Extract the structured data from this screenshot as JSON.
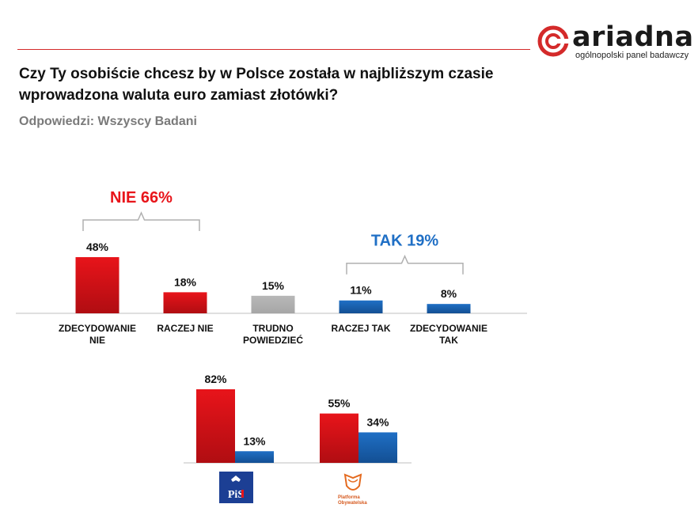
{
  "header": {
    "logo_text": "ariadna",
    "logo_subtitle": "ogólnopolski panel badawczy",
    "question": "Czy Ty osobiście chcesz by w Polsce została w najbliższym czasie wprowadzona waluta euro zamiast złotówki?",
    "respondents": "Odpowiedzi: Wszyscy Badani"
  },
  "colors": {
    "red": "#e8141a",
    "blue": "#1f6fc5",
    "gray": "#a6a6a6",
    "accent_line": "#d42a2a",
    "tak_title": "#1f6fc5",
    "nie_title": "#e8141a"
  },
  "chart_data": [
    {
      "type": "bar",
      "title": "",
      "categories": [
        [
          "ZDECYDOWANIE",
          "NIE"
        ],
        [
          "RACZEJ NIE"
        ],
        [
          "TRUDNO",
          "POWIEDZIEĆ"
        ],
        [
          "RACZEJ TAK"
        ],
        [
          "ZDECYDOWANIE",
          "TAK"
        ]
      ],
      "values": [
        48,
        18,
        15,
        11,
        8
      ],
      "value_labels": [
        "48%",
        "18%",
        "15%",
        "11%",
        "8%"
      ],
      "bar_colors": [
        "red",
        "red",
        "gray",
        "blue",
        "blue"
      ],
      "unit": "%",
      "groups": [
        {
          "label": "NIE 66%",
          "members": [
            0,
            1
          ],
          "color": "red"
        },
        {
          "label": "TAK 19%",
          "members": [
            3,
            4
          ],
          "color": "blue"
        }
      ],
      "xlabel": "",
      "ylabel": "",
      "ylim": [
        0,
        50
      ]
    },
    {
      "type": "bar",
      "title": "",
      "categories": [
        "PiS",
        "Platforma Obywatelska"
      ],
      "series": [
        {
          "name": "NIE",
          "color": "red",
          "values": [
            82,
            55
          ],
          "labels": [
            "82%",
            "55%"
          ]
        },
        {
          "name": "TAK",
          "color": "blue",
          "values": [
            13,
            34
          ],
          "labels": [
            "13%",
            "34%"
          ]
        }
      ],
      "party_logos": [
        {
          "name": "PiS",
          "text": "PiS"
        },
        {
          "name": "Platforma Obywatelska",
          "text_line1": "Platforma",
          "text_line2": "Obywatelska"
        }
      ],
      "ylim": [
        0,
        85
      ]
    }
  ]
}
